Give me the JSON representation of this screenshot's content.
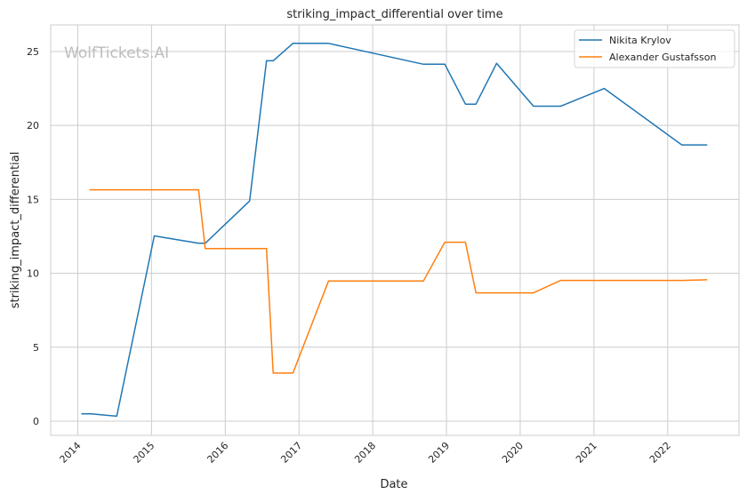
{
  "chart_data": {
    "type": "line",
    "title": "striking_impact_differential over time",
    "xlabel": "Date",
    "ylabel": "striking_impact_differential",
    "watermark": "WolfTickets.AI",
    "xlim": [
      "2013-08-20",
      "2022-12-20"
    ],
    "ylim": [
      -0.96,
      26.8
    ],
    "x_ticks": [
      "2014",
      "2015",
      "2016",
      "2017",
      "2018",
      "2019",
      "2020",
      "2021",
      "2022"
    ],
    "y_ticks": [
      0,
      5,
      10,
      15,
      20,
      25
    ],
    "grid": true,
    "legend_position": "top-right",
    "series": [
      {
        "name": "Nikita Krylov",
        "color": "#1f77b4",
        "points": [
          [
            "2014-01-19",
            0.5
          ],
          [
            "2014-03-07",
            0.5
          ],
          [
            "2014-07-13",
            0.34
          ],
          [
            "2015-01-15",
            12.53
          ],
          [
            "2015-08-22",
            12.03
          ],
          [
            "2015-09-24",
            12.03
          ],
          [
            "2016-05-01",
            14.89
          ],
          [
            "2016-07-24",
            24.37
          ],
          [
            "2016-08-26",
            24.37
          ],
          [
            "2016-12-02",
            25.55
          ],
          [
            "2017-05-27",
            25.55
          ],
          [
            "2018-09-09",
            24.14
          ],
          [
            "2018-12-24",
            24.14
          ],
          [
            "2019-04-05",
            21.44
          ],
          [
            "2019-05-27",
            21.44
          ],
          [
            "2019-09-06",
            24.2
          ],
          [
            "2020-03-07",
            21.3
          ],
          [
            "2020-07-20",
            21.3
          ],
          [
            "2021-02-21",
            22.5
          ],
          [
            "2022-03-12",
            18.68
          ],
          [
            "2022-07-16",
            18.68
          ]
        ]
      },
      {
        "name": "Alexander Gustafsson",
        "color": "#ff7f0e",
        "points": [
          [
            "2014-02-28",
            15.65
          ],
          [
            "2015-08-22",
            15.65
          ],
          [
            "2015-09-24",
            11.67
          ],
          [
            "2016-07-24",
            11.67
          ],
          [
            "2016-08-26",
            3.25
          ],
          [
            "2016-12-02",
            3.25
          ],
          [
            "2017-05-27",
            9.48
          ],
          [
            "2018-09-09",
            9.48
          ],
          [
            "2018-12-24",
            12.1
          ],
          [
            "2019-04-05",
            12.1
          ],
          [
            "2019-05-27",
            8.68
          ],
          [
            "2020-03-07",
            8.68
          ],
          [
            "2020-07-20",
            9.52
          ],
          [
            "2022-03-12",
            9.52
          ],
          [
            "2022-07-16",
            9.56
          ]
        ]
      }
    ]
  }
}
